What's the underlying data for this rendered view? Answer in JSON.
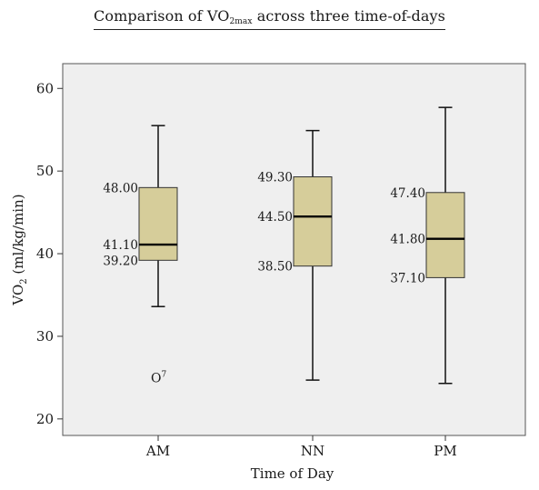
{
  "chart_data": {
    "type": "box",
    "title": {
      "prefix": "Comparison of VO",
      "subscript": "2max",
      "suffix": " across three time-of-days"
    },
    "xlabel": "Time of Day",
    "ylabel": {
      "prefix": "VO",
      "subscript": "2",
      "suffix": " (ml/kg/min)"
    },
    "ylim": [
      18,
      63
    ],
    "yticks": [
      20,
      30,
      40,
      50,
      60
    ],
    "grid": false,
    "box_fill": "#d6cd9a",
    "plot_background": "#efefef",
    "categories": [
      "AM",
      "NN",
      "PM"
    ],
    "boxes": [
      {
        "category": "AM",
        "whisker_low": 33.6,
        "q1": 39.2,
        "median": 41.1,
        "q3": 48.0,
        "whisker_high": 55.5,
        "labels": {
          "q3": "48.00",
          "median": "41.10",
          "q1": "39.20"
        },
        "outliers": [
          {
            "value": 25.0,
            "marker": "O",
            "label": "7"
          }
        ]
      },
      {
        "category": "NN",
        "whisker_low": 24.7,
        "q1": 38.5,
        "median": 44.5,
        "q3": 49.3,
        "whisker_high": 54.9,
        "labels": {
          "q3": "49.30",
          "median": "44.50",
          "q1": "38.50"
        },
        "outliers": []
      },
      {
        "category": "PM",
        "whisker_low": 24.3,
        "q1": 37.1,
        "median": 41.8,
        "q3": 47.4,
        "whisker_high": 57.7,
        "labels": {
          "q3": "47.40",
          "median": "41.80",
          "q1": "37.10"
        },
        "outliers": []
      }
    ]
  }
}
